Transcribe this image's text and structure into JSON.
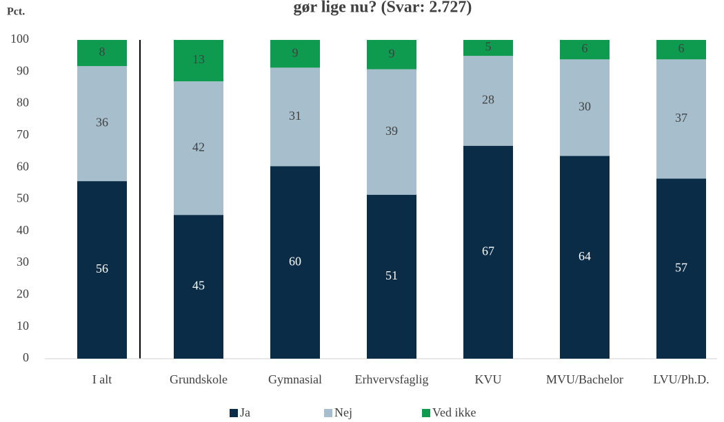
{
  "chart_data": {
    "type": "stacked_bar",
    "title": "gør lige nu? (Svar: 2.727)",
    "y_label": "Pct.",
    "categories": [
      "I alt",
      "Grundskole",
      "Gymnasial",
      "Erhvervsfaglig",
      "KVU",
      "MVU/Bachelor",
      "LVU/Ph.D."
    ],
    "series": [
      {
        "name": "Ja",
        "color": "#0a2c47",
        "label_color": "#ffffff",
        "values": [
          55.7,
          45.1,
          60.4,
          51.4,
          66.8,
          63.6,
          56.5
        ],
        "value_labels": [
          "56",
          "45",
          "60",
          "51",
          "67",
          "64",
          "57"
        ]
      },
      {
        "name": "Nej",
        "color": "#a7bfcc",
        "label_color": "#404040",
        "values": [
          36.1,
          41.9,
          30.9,
          39.4,
          28.2,
          30.3,
          37.4
        ],
        "value_labels": [
          "36",
          "42",
          "31",
          "39",
          "28",
          "30",
          "37"
        ]
      },
      {
        "name": "Ved ikke",
        "color": "#0e9b50",
        "label_color": "#404040",
        "values": [
          8.2,
          13.0,
          8.7,
          9.2,
          5.0,
          6.1,
          6.1
        ],
        "value_labels": [
          "8",
          "13",
          "9",
          "9",
          "5",
          "6",
          "6"
        ]
      }
    ],
    "ylim": [
      0,
      100
    ],
    "yticks": [
      0,
      10,
      20,
      30,
      40,
      50,
      60,
      70,
      80,
      90,
      100
    ],
    "grid": false,
    "legend": "bottom"
  }
}
